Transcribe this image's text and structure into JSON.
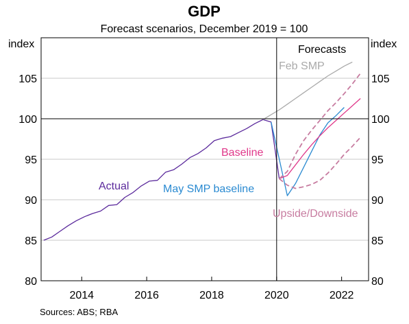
{
  "chart_data": {
    "type": "line",
    "title": "GDP",
    "subtitle": "Forecast scenarios, December 2019 = 100",
    "ylabel_left": "index",
    "ylabel_right": "index",
    "ylim": [
      80,
      110
    ],
    "yticks": [
      80,
      85,
      90,
      95,
      100,
      105
    ],
    "xlim": [
      2012.75,
      2022.83
    ],
    "xticks": [
      2014,
      2016,
      2018,
      2020,
      2022
    ],
    "xticklabels": [
      "2014",
      "2016",
      "2018",
      "2020",
      "2022"
    ],
    "grid": true,
    "reference_line": 100,
    "forecast_start": 2020.0,
    "forecast_label": "Forecasts",
    "source": "Sources:   ABS; RBA",
    "series": [
      {
        "name": "Actual",
        "color": "#5b2a9c",
        "style": "solid",
        "points": [
          [
            2012.83,
            85.0
          ],
          [
            2013.08,
            85.4
          ],
          [
            2013.33,
            86.1
          ],
          [
            2013.58,
            86.8
          ],
          [
            2013.83,
            87.4
          ],
          [
            2014.08,
            87.9
          ],
          [
            2014.33,
            88.3
          ],
          [
            2014.58,
            88.6
          ],
          [
            2014.83,
            89.3
          ],
          [
            2015.08,
            89.4
          ],
          [
            2015.33,
            90.3
          ],
          [
            2015.58,
            90.9
          ],
          [
            2015.83,
            91.7
          ],
          [
            2016.08,
            92.3
          ],
          [
            2016.33,
            92.4
          ],
          [
            2016.58,
            93.4
          ],
          [
            2016.83,
            93.7
          ],
          [
            2017.08,
            94.4
          ],
          [
            2017.33,
            95.2
          ],
          [
            2017.58,
            95.7
          ],
          [
            2017.83,
            96.4
          ],
          [
            2018.08,
            97.3
          ],
          [
            2018.33,
            97.6
          ],
          [
            2018.58,
            97.8
          ],
          [
            2018.83,
            98.3
          ],
          [
            2019.08,
            98.8
          ],
          [
            2019.33,
            99.4
          ],
          [
            2019.58,
            99.9
          ],
          [
            2019.83,
            99.6
          ],
          [
            2020.08,
            92.6
          ]
        ]
      },
      {
        "name": "Feb SMP",
        "color": "#aaaaaa",
        "style": "solid",
        "points": [
          [
            2019.58,
            99.9
          ],
          [
            2019.83,
            100.5
          ],
          [
            2020.08,
            101.1
          ],
          [
            2020.33,
            101.8
          ],
          [
            2020.58,
            102.5
          ],
          [
            2020.83,
            103.2
          ],
          [
            2021.08,
            103.9
          ],
          [
            2021.33,
            104.6
          ],
          [
            2021.58,
            105.3
          ],
          [
            2021.83,
            105.9
          ],
          [
            2022.08,
            106.5
          ],
          [
            2022.33,
            107.0
          ]
        ]
      },
      {
        "name": "May SMP baseline",
        "color": "#2a8ad1",
        "style": "solid",
        "points": [
          [
            2019.83,
            99.6
          ],
          [
            2020.33,
            90.5
          ],
          [
            2020.58,
            92.0
          ],
          [
            2020.83,
            94.0
          ],
          [
            2021.08,
            96.0
          ],
          [
            2021.33,
            98.0
          ],
          [
            2021.58,
            99.5
          ],
          [
            2021.83,
            100.4
          ],
          [
            2022.08,
            101.4
          ]
        ]
      },
      {
        "name": "Baseline",
        "color": "#e0388a",
        "style": "solid",
        "points": [
          [
            2020.08,
            92.6
          ],
          [
            2020.33,
            93.0
          ],
          [
            2020.58,
            94.3
          ],
          [
            2020.83,
            95.6
          ],
          [
            2021.08,
            96.8
          ],
          [
            2021.33,
            97.9
          ],
          [
            2021.58,
            98.9
          ],
          [
            2021.83,
            99.8
          ],
          [
            2022.08,
            100.7
          ],
          [
            2022.33,
            101.6
          ],
          [
            2022.58,
            102.5
          ]
        ]
      },
      {
        "name": "Upside",
        "color": "#c77ca0",
        "style": "dashed",
        "points": [
          [
            2020.08,
            92.6
          ],
          [
            2020.33,
            93.5
          ],
          [
            2020.58,
            95.6
          ],
          [
            2020.83,
            97.3
          ],
          [
            2021.08,
            98.6
          ],
          [
            2021.33,
            99.8
          ],
          [
            2021.58,
            101.0
          ],
          [
            2021.83,
            102.0
          ],
          [
            2022.08,
            103.1
          ],
          [
            2022.33,
            104.3
          ],
          [
            2022.58,
            105.6
          ]
        ]
      },
      {
        "name": "Downside",
        "color": "#c77ca0",
        "style": "dashed",
        "points": [
          [
            2020.08,
            92.6
          ],
          [
            2020.33,
            91.8
          ],
          [
            2020.58,
            91.4
          ],
          [
            2020.83,
            91.6
          ],
          [
            2021.08,
            91.9
          ],
          [
            2021.33,
            92.4
          ],
          [
            2021.58,
            93.3
          ],
          [
            2021.83,
            94.4
          ],
          [
            2022.08,
            95.6
          ],
          [
            2022.33,
            96.6
          ],
          [
            2022.58,
            97.7
          ]
        ]
      }
    ],
    "annotations": {
      "actual": "Actual",
      "feb_smp": "Feb SMP",
      "baseline": "Baseline",
      "may_smp": "May SMP baseline",
      "upside_downside": "Upside/Downside"
    },
    "annotation_colors": {
      "actual": "#5b2a9c",
      "feb_smp": "#aaaaaa",
      "baseline": "#e0388a",
      "may_smp": "#2a8ad1",
      "upside_downside": "#c77ca0"
    }
  }
}
